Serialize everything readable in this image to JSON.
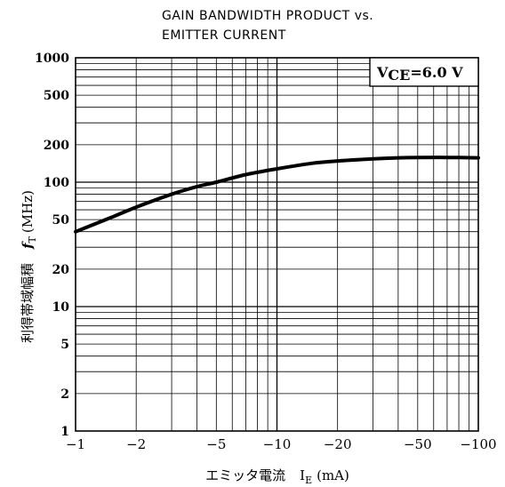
{
  "chart_data": {
    "type": "line",
    "title_line1": "GAIN BANDWIDTH PRODUCT vs.",
    "title_line2": "EMITTER CURRENT",
    "ylabel_jp": "利得帯域幅積",
    "ylabel_sym": "f",
    "ylabel_sub": "T",
    "ylabel_unit": "(MHz)",
    "xlabel_jp": "エミッタ電流",
    "xlabel_sym": "I",
    "xlabel_sub": "E",
    "xlabel_unit": "(mA)",
    "condition_main": "V",
    "condition_sub": "CE",
    "condition_value": "=6.0 V",
    "xscale": "log",
    "yscale": "log",
    "xlim": [
      -1,
      -100
    ],
    "ylim": [
      1,
      1000
    ],
    "grid": true,
    "x_ticks": [
      {
        "value": 1,
        "label": "−1"
      },
      {
        "value": 2,
        "label": "−2"
      },
      {
        "value": 5,
        "label": "−5"
      },
      {
        "value": 10,
        "label": "−10"
      },
      {
        "value": 20,
        "label": "−20"
      },
      {
        "value": 50,
        "label": "−50"
      },
      {
        "value": 100,
        "label": "−100"
      }
    ],
    "y_ticks": [
      {
        "value": 1,
        "label": "1"
      },
      {
        "value": 2,
        "label": "2"
      },
      {
        "value": 5,
        "label": "5"
      },
      {
        "value": 10,
        "label": "10"
      },
      {
        "value": 20,
        "label": "20"
      },
      {
        "value": 50,
        "label": "50"
      },
      {
        "value": 100,
        "label": "100"
      },
      {
        "value": 200,
        "label": "200"
      },
      {
        "value": 500,
        "label": "500"
      },
      {
        "value": 1000,
        "label": "1000"
      }
    ],
    "series": [
      {
        "x": [
          -1,
          -1.5,
          -2,
          -3,
          -4,
          -5,
          -7,
          -10,
          -15,
          -20,
          -30,
          -40,
          -50,
          -70,
          -100
        ],
        "y": [
          40,
          52,
          63,
          80,
          92,
          100,
          115,
          128,
          142,
          148,
          154,
          157,
          158,
          158,
          157
        ]
      }
    ]
  }
}
